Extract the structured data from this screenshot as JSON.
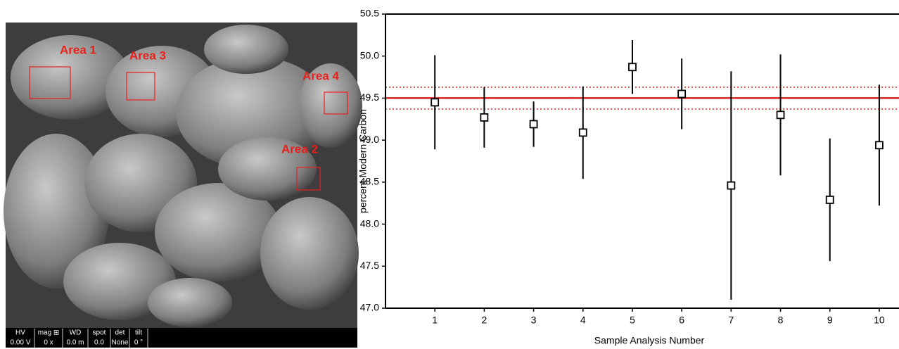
{
  "image": {
    "areas": [
      "Area 1",
      "Area 3",
      "Area 4",
      "Area 2"
    ],
    "info_bar": {
      "headers": [
        "HV",
        "mag ⊞",
        "WD",
        "spot",
        "det",
        "tilt"
      ],
      "values": [
        "0.00 V",
        "0 x",
        "0.0 m",
        "0.0",
        "None",
        "0 °"
      ]
    }
  },
  "chart_data": {
    "type": "scatter",
    "x_label": "Sample Analysis Number",
    "y_label": "percent Modern Carbon",
    "x": [
      1,
      2,
      3,
      4,
      5,
      6,
      7,
      8,
      9,
      10
    ],
    "series": [
      {
        "color": "#000000",
        "values": [
          49.45,
          49.27,
          49.19,
          49.09,
          49.87,
          49.55,
          48.46,
          49.3,
          48.29,
          48.94
        ],
        "errors": [
          0.56,
          0.36,
          0.27,
          0.55,
          0.32,
          0.42,
          1.36,
          0.72,
          0.73,
          0.72
        ]
      }
    ],
    "reference_lines": [
      {
        "value": 49.5,
        "style": "solid"
      },
      {
        "value": 49.63,
        "style": "dotted"
      },
      {
        "value": 49.37,
        "style": "dotted"
      }
    ],
    "reference_color": "#e02020",
    "xlim": [
      0,
      10.4
    ],
    "ylim": [
      47,
      50.5
    ],
    "xticks": [
      1,
      2,
      3,
      4,
      5,
      6,
      7,
      8,
      9,
      10
    ],
    "yticks": [
      {
        "value": 47,
        "label": "47.0"
      },
      47.5,
      {
        "value": 48,
        "label": "48.0"
      },
      48.5,
      {
        "value": 49,
        "label": "49.0"
      },
      49.5,
      {
        "value": 50,
        "label": "50.0"
      },
      50.5
    ]
  }
}
